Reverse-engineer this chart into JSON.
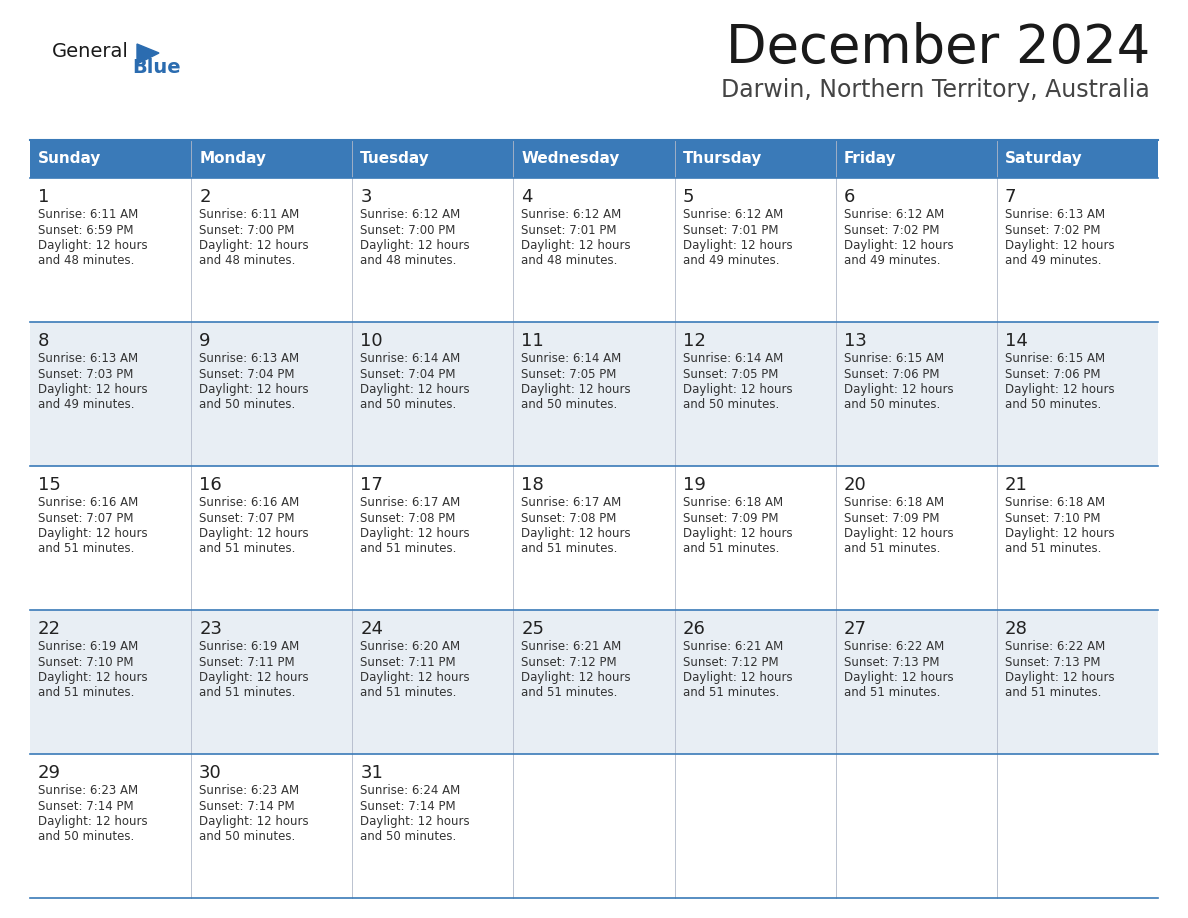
{
  "title": "December 2024",
  "subtitle": "Darwin, Northern Territory, Australia",
  "header_bg_color": "#3a7ab8",
  "header_text_color": "#ffffff",
  "cell_bg_even": "#ffffff",
  "cell_bg_odd": "#e8eef4",
  "border_color": "#3a7ab8",
  "day_headers": [
    "Sunday",
    "Monday",
    "Tuesday",
    "Wednesday",
    "Thursday",
    "Friday",
    "Saturday"
  ],
  "title_color": "#1a1a1a",
  "subtitle_color": "#444444",
  "day_num_color": "#222222",
  "cell_text_color": "#333333",
  "logo_general_color": "#1a1a1a",
  "logo_blue_color": "#2b6cb0",
  "calendar": [
    [
      {
        "day": 1,
        "sunrise": "6:11 AM",
        "sunset": "6:59 PM",
        "daylight": "12 hours and 48 minutes."
      },
      {
        "day": 2,
        "sunrise": "6:11 AM",
        "sunset": "7:00 PM",
        "daylight": "12 hours and 48 minutes."
      },
      {
        "day": 3,
        "sunrise": "6:12 AM",
        "sunset": "7:00 PM",
        "daylight": "12 hours and 48 minutes."
      },
      {
        "day": 4,
        "sunrise": "6:12 AM",
        "sunset": "7:01 PM",
        "daylight": "12 hours and 48 minutes."
      },
      {
        "day": 5,
        "sunrise": "6:12 AM",
        "sunset": "7:01 PM",
        "daylight": "12 hours and 49 minutes."
      },
      {
        "day": 6,
        "sunrise": "6:12 AM",
        "sunset": "7:02 PM",
        "daylight": "12 hours and 49 minutes."
      },
      {
        "day": 7,
        "sunrise": "6:13 AM",
        "sunset": "7:02 PM",
        "daylight": "12 hours and 49 minutes."
      }
    ],
    [
      {
        "day": 8,
        "sunrise": "6:13 AM",
        "sunset": "7:03 PM",
        "daylight": "12 hours and 49 minutes."
      },
      {
        "day": 9,
        "sunrise": "6:13 AM",
        "sunset": "7:04 PM",
        "daylight": "12 hours and 50 minutes."
      },
      {
        "day": 10,
        "sunrise": "6:14 AM",
        "sunset": "7:04 PM",
        "daylight": "12 hours and 50 minutes."
      },
      {
        "day": 11,
        "sunrise": "6:14 AM",
        "sunset": "7:05 PM",
        "daylight": "12 hours and 50 minutes."
      },
      {
        "day": 12,
        "sunrise": "6:14 AM",
        "sunset": "7:05 PM",
        "daylight": "12 hours and 50 minutes."
      },
      {
        "day": 13,
        "sunrise": "6:15 AM",
        "sunset": "7:06 PM",
        "daylight": "12 hours and 50 minutes."
      },
      {
        "day": 14,
        "sunrise": "6:15 AM",
        "sunset": "7:06 PM",
        "daylight": "12 hours and 50 minutes."
      }
    ],
    [
      {
        "day": 15,
        "sunrise": "6:16 AM",
        "sunset": "7:07 PM",
        "daylight": "12 hours and 51 minutes."
      },
      {
        "day": 16,
        "sunrise": "6:16 AM",
        "sunset": "7:07 PM",
        "daylight": "12 hours and 51 minutes."
      },
      {
        "day": 17,
        "sunrise": "6:17 AM",
        "sunset": "7:08 PM",
        "daylight": "12 hours and 51 minutes."
      },
      {
        "day": 18,
        "sunrise": "6:17 AM",
        "sunset": "7:08 PM",
        "daylight": "12 hours and 51 minutes."
      },
      {
        "day": 19,
        "sunrise": "6:18 AM",
        "sunset": "7:09 PM",
        "daylight": "12 hours and 51 minutes."
      },
      {
        "day": 20,
        "sunrise": "6:18 AM",
        "sunset": "7:09 PM",
        "daylight": "12 hours and 51 minutes."
      },
      {
        "day": 21,
        "sunrise": "6:18 AM",
        "sunset": "7:10 PM",
        "daylight": "12 hours and 51 minutes."
      }
    ],
    [
      {
        "day": 22,
        "sunrise": "6:19 AM",
        "sunset": "7:10 PM",
        "daylight": "12 hours and 51 minutes."
      },
      {
        "day": 23,
        "sunrise": "6:19 AM",
        "sunset": "7:11 PM",
        "daylight": "12 hours and 51 minutes."
      },
      {
        "day": 24,
        "sunrise": "6:20 AM",
        "sunset": "7:11 PM",
        "daylight": "12 hours and 51 minutes."
      },
      {
        "day": 25,
        "sunrise": "6:21 AM",
        "sunset": "7:12 PM",
        "daylight": "12 hours and 51 minutes."
      },
      {
        "day": 26,
        "sunrise": "6:21 AM",
        "sunset": "7:12 PM",
        "daylight": "12 hours and 51 minutes."
      },
      {
        "day": 27,
        "sunrise": "6:22 AM",
        "sunset": "7:13 PM",
        "daylight": "12 hours and 51 minutes."
      },
      {
        "day": 28,
        "sunrise": "6:22 AM",
        "sunset": "7:13 PM",
        "daylight": "12 hours and 51 minutes."
      }
    ],
    [
      {
        "day": 29,
        "sunrise": "6:23 AM",
        "sunset": "7:14 PM",
        "daylight": "12 hours and 50 minutes."
      },
      {
        "day": 30,
        "sunrise": "6:23 AM",
        "sunset": "7:14 PM",
        "daylight": "12 hours and 50 minutes."
      },
      {
        "day": 31,
        "sunrise": "6:24 AM",
        "sunset": "7:14 PM",
        "daylight": "12 hours and 50 minutes."
      },
      null,
      null,
      null,
      null
    ]
  ]
}
